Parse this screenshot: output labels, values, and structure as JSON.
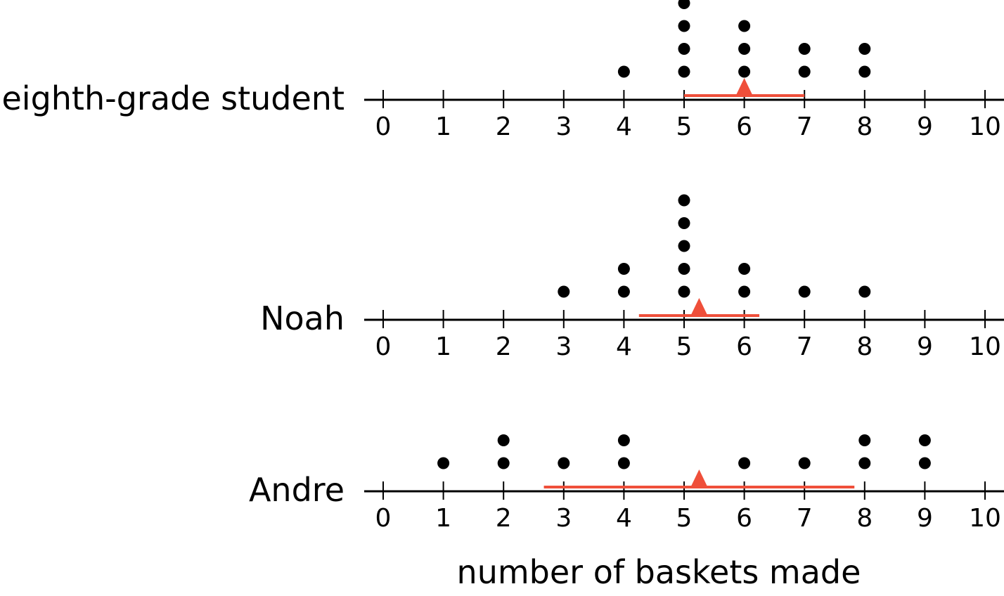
{
  "chart_data": [
    {
      "type": "dot-plot",
      "label": "eighth-grade student",
      "x_ticks": [
        0,
        1,
        2,
        3,
        4,
        5,
        6,
        7,
        8,
        9,
        10
      ],
      "xlim": [
        0,
        10
      ],
      "counts": {
        "4": 1,
        "5": 4,
        "6": 3,
        "7": 2,
        "8": 2
      },
      "mean": 6,
      "mad_range": [
        5,
        7
      ]
    },
    {
      "type": "dot-plot",
      "label": "Noah",
      "x_ticks": [
        0,
        1,
        2,
        3,
        4,
        5,
        6,
        7,
        8,
        9,
        10
      ],
      "xlim": [
        0,
        10
      ],
      "counts": {
        "3": 1,
        "4": 2,
        "5": 5,
        "6": 2,
        "7": 1,
        "8": 1
      },
      "mean": 5.25,
      "mad_range": [
        4.25,
        6.25
      ]
    },
    {
      "type": "dot-plot",
      "label": "Andre",
      "x_ticks": [
        0,
        1,
        2,
        3,
        4,
        5,
        6,
        7,
        8,
        9,
        10
      ],
      "xlim": [
        0,
        10
      ],
      "counts": {
        "1": 1,
        "2": 2,
        "3": 1,
        "4": 2,
        "6": 1,
        "7": 1,
        "8": 2,
        "9": 2
      },
      "mean": 5.25,
      "mad_range": [
        2.67,
        7.83
      ]
    }
  ],
  "xlabel": "number of baskets made",
  "colors": {
    "dots": "#000000",
    "mean_marker": "#ef4f3a",
    "mad_line": "#ef4f3a",
    "axis": "#000000"
  }
}
